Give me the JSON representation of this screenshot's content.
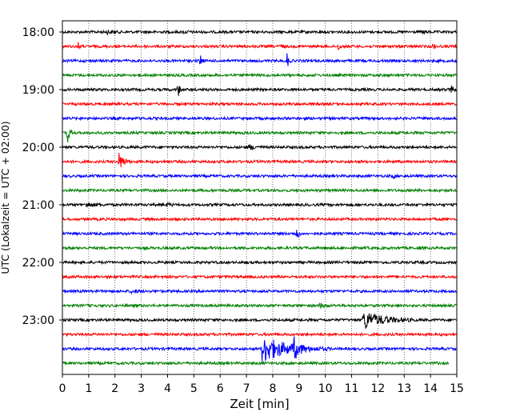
{
  "chart_data": {
    "type": "line",
    "subtype": "helicorder",
    "xlabel": "Zeit  [min]",
    "ylabel": "UTC (Lokalzeit = UTC + 02:00)",
    "xlim": [
      0,
      15
    ],
    "xticks": [
      "0",
      "1",
      "2",
      "3",
      "4",
      "5",
      "6",
      "7",
      "8",
      "9",
      "10",
      "11",
      "12",
      "13",
      "14",
      "15"
    ],
    "yticks": [
      "18:00",
      "19:00",
      "20:00",
      "21:00",
      "22:00",
      "23:00"
    ],
    "grid_x": true,
    "trace_colors": [
      "#000000",
      "#ff0000",
      "#0000ff",
      "#008000"
    ],
    "series": [
      {
        "start": "18:00",
        "events": [
          {
            "t": 1.7,
            "amp": 0.12,
            "len": 0.6
          },
          {
            "t": 4.6,
            "amp": 0.1,
            "len": 0.4
          },
          {
            "t": 13.7,
            "amp": 0.12,
            "len": 0.4
          }
        ]
      },
      {
        "start": "18:15",
        "events": [
          {
            "t": 0.6,
            "amp": 0.3,
            "len": 0.2
          },
          {
            "t": 8.3,
            "amp": 0.25,
            "len": 0.2
          },
          {
            "t": 10.5,
            "amp": 0.3,
            "len": 0.2
          },
          {
            "t": 14.1,
            "amp": 0.25,
            "len": 0.2
          }
        ]
      },
      {
        "start": "18:30",
        "events": [
          {
            "t": 5.25,
            "amp": 0.6,
            "len": 0.15
          },
          {
            "t": 8.55,
            "amp": 0.75,
            "len": 0.15
          }
        ]
      },
      {
        "start": "18:45",
        "events": []
      },
      {
        "start": "19:00",
        "events": [
          {
            "t": 4.4,
            "amp": 0.7,
            "len": 0.15
          },
          {
            "t": 14.8,
            "amp": 0.3,
            "len": 0.2
          }
        ]
      },
      {
        "start": "19:15",
        "events": []
      },
      {
        "start": "19:30",
        "events": []
      },
      {
        "start": "19:45",
        "events": [
          {
            "t": 0.2,
            "amp": 0.8,
            "len": 0.3
          }
        ]
      },
      {
        "start": "20:00",
        "events": [
          {
            "t": 7.1,
            "amp": 0.25,
            "len": 0.5
          }
        ]
      },
      {
        "start": "20:15",
        "events": [
          {
            "t": 2.15,
            "amp": 0.75,
            "len": 0.5
          }
        ]
      },
      {
        "start": "20:30",
        "events": [
          {
            "t": 12.6,
            "amp": 0.3,
            "len": 0.1
          }
        ]
      },
      {
        "start": "20:45",
        "events": []
      },
      {
        "start": "21:00",
        "events": [
          {
            "t": 0.9,
            "amp": 0.2,
            "len": 0.8
          },
          {
            "t": 4.0,
            "amp": 0.15,
            "len": 0.3
          }
        ]
      },
      {
        "start": "21:15",
        "events": []
      },
      {
        "start": "21:30",
        "events": [
          {
            "t": 8.9,
            "amp": 0.7,
            "len": 0.2
          }
        ]
      },
      {
        "start": "21:45",
        "events": []
      },
      {
        "start": "22:00",
        "events": []
      },
      {
        "start": "22:15",
        "events": []
      },
      {
        "start": "22:30",
        "events": [
          {
            "t": 2.6,
            "amp": 0.15,
            "len": 0.6
          }
        ]
      },
      {
        "start": "22:45",
        "events": [
          {
            "t": 9.8,
            "amp": 0.15,
            "len": 0.5
          }
        ]
      },
      {
        "start": "23:00",
        "events": [
          {
            "t": 11.45,
            "amp": 0.85,
            "len": 2.0
          }
        ]
      },
      {
        "start": "23:15",
        "events": []
      },
      {
        "start": "23:30",
        "events": [
          {
            "t": 7.6,
            "amp": 1.2,
            "len": 2.6
          },
          {
            "t": 8.8,
            "amp": 0.8,
            "len": 0.5
          }
        ]
      },
      {
        "start": "23:45",
        "events": [],
        "end_minute": 14.7
      }
    ]
  }
}
